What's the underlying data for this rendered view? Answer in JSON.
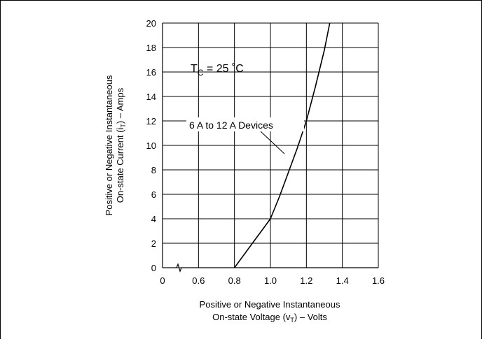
{
  "chart_data": {
    "type": "line",
    "xlabel_line1": "Positive or Negative Instantaneous",
    "xlabel_line2_pre": "On-state Voltage (v",
    "xlabel_line2_sub": "T",
    "xlabel_line2_post": ") – Volts",
    "ylabel_line1": "Positive or Negative Instantaneous",
    "ylabel_line2_pre": "On-state Current (i",
    "ylabel_line2_sub": "T",
    "ylabel_line2_post": ") – Amps",
    "xticks": [
      0,
      0.6,
      0.8,
      1.0,
      1.2,
      1.4,
      1.6
    ],
    "xtick_labels": [
      "0",
      "0.6",
      "0.8",
      "1.0",
      "1.2",
      "1.4",
      "1.6"
    ],
    "yticks": [
      0,
      2,
      4,
      6,
      8,
      10,
      12,
      14,
      16,
      18,
      20
    ],
    "xlim": [
      0.4,
      1.6
    ],
    "ylim": [
      0,
      20
    ],
    "x_axis_break": true,
    "grid": true,
    "annotation_temp_pre": "T",
    "annotation_temp_sub": "C",
    "annotation_temp_post": " = 25 ˚C",
    "series_annotation": "6 A to 12 A Devices",
    "series": [
      {
        "x": [
          0.8,
          0.85,
          0.9,
          0.95,
          1.0,
          1.05,
          1.1,
          1.15,
          1.2,
          1.25,
          1.3,
          1.33
        ],
        "y": [
          0,
          1.0,
          2.0,
          3.0,
          4.0,
          5.8,
          7.8,
          9.8,
          12.0,
          14.8,
          17.8,
          20
        ]
      }
    ]
  }
}
